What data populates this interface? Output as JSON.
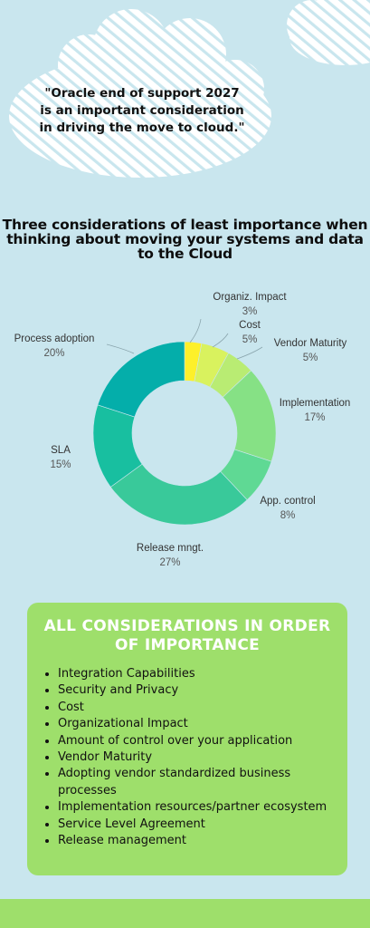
{
  "quote": "\"Oracle end of support 2027 is an important consideration in driving the move to cloud.\"",
  "chart_title": "Three considerations of least importance when thinking about moving your systems and data to the Cloud",
  "chart_data": {
    "type": "pie",
    "title": "Three considerations of least importance when thinking about moving your systems and data to the Cloud",
    "categories": [
      "Organiz. Impact",
      "Cost",
      "Vendor Maturity",
      "Implementation",
      "App. control",
      "Release mngt.",
      "SLA",
      "Process adoption"
    ],
    "values": [
      3,
      5,
      5,
      17,
      8,
      27,
      15,
      20
    ],
    "labels": [
      "3%",
      "5%",
      "5%",
      "17%",
      "8%",
      "27%",
      "15%",
      "20%"
    ],
    "colors": [
      "#fdf02a",
      "#d9f25e",
      "#b9ec73",
      "#86e185",
      "#5fd994",
      "#39c99a",
      "#18bfa0",
      "#04aeaa"
    ],
    "donut": true
  },
  "considerations": {
    "title": "ALL CONSIDERATIONS IN ORDER OF IMPORTANCE",
    "items": [
      "Integration Capabilities",
      "Security and Privacy",
      "Cost",
      "Organizational Impact",
      "Amount of control over your application",
      "Vendor Maturity",
      "Adopting vendor standardized business processes",
      "Implementation resources/partner ecosystem",
      "Service Level Agreement",
      "Release management"
    ]
  }
}
